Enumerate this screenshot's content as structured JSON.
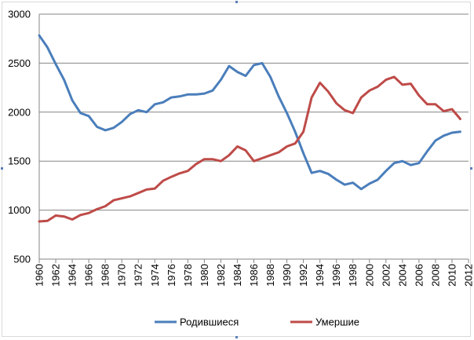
{
  "chart_data": {
    "type": "line",
    "title": "",
    "xlabel": "",
    "ylabel": "",
    "ylim": [
      500,
      3000
    ],
    "yticks": [
      500,
      1000,
      1500,
      2000,
      2500,
      3000
    ],
    "xlim": [
      1960,
      2012
    ],
    "xticks": [
      1960,
      1962,
      1964,
      1966,
      1968,
      1970,
      1972,
      1974,
      1976,
      1978,
      1980,
      1982,
      1984,
      1986,
      1988,
      1990,
      1992,
      1994,
      1996,
      1998,
      2000,
      2002,
      2004,
      2006,
      2008,
      2010,
      2012
    ],
    "grid": "horizontal",
    "legend_position": "bottom",
    "x": [
      1960,
      1961,
      1962,
      1963,
      1964,
      1965,
      1966,
      1967,
      1968,
      1969,
      1970,
      1971,
      1972,
      1973,
      1974,
      1975,
      1976,
      1977,
      1978,
      1979,
      1980,
      1981,
      1982,
      1983,
      1984,
      1985,
      1986,
      1987,
      1988,
      1989,
      1990,
      1991,
      1992,
      1993,
      1994,
      1995,
      1996,
      1997,
      1998,
      1999,
      2000,
      2001,
      2002,
      2003,
      2004,
      2005,
      2006,
      2007,
      2008,
      2009,
      2010,
      2011
    ],
    "series": [
      {
        "name": "Родившиеся",
        "color": "#4a7ebb",
        "values": [
          2782,
          2660,
          2490,
          2330,
          2120,
          1990,
          1960,
          1850,
          1815,
          1840,
          1900,
          1980,
          2020,
          2000,
          2080,
          2100,
          2150,
          2160,
          2180,
          2180,
          2190,
          2220,
          2330,
          2470,
          2410,
          2370,
          2480,
          2500,
          2360,
          2160,
          1990,
          1800,
          1580,
          1380,
          1400,
          1370,
          1310,
          1260,
          1280,
          1215,
          1270,
          1310,
          1400,
          1480,
          1500,
          1460,
          1480,
          1600,
          1710,
          1760,
          1790,
          1800
        ]
      },
      {
        "name": "Умершие",
        "color": "#be4b48",
        "values": [
          885,
          890,
          945,
          935,
          905,
          950,
          970,
          1010,
          1040,
          1100,
          1120,
          1140,
          1175,
          1210,
          1220,
          1300,
          1340,
          1375,
          1400,
          1470,
          1520,
          1520,
          1500,
          1560,
          1650,
          1610,
          1500,
          1530,
          1560,
          1590,
          1650,
          1680,
          1800,
          2150,
          2300,
          2210,
          2090,
          2020,
          1990,
          2150,
          2220,
          2260,
          2330,
          2360,
          2280,
          2290,
          2170,
          2080,
          2080,
          2010,
          2030,
          1930
        ]
      }
    ]
  }
}
